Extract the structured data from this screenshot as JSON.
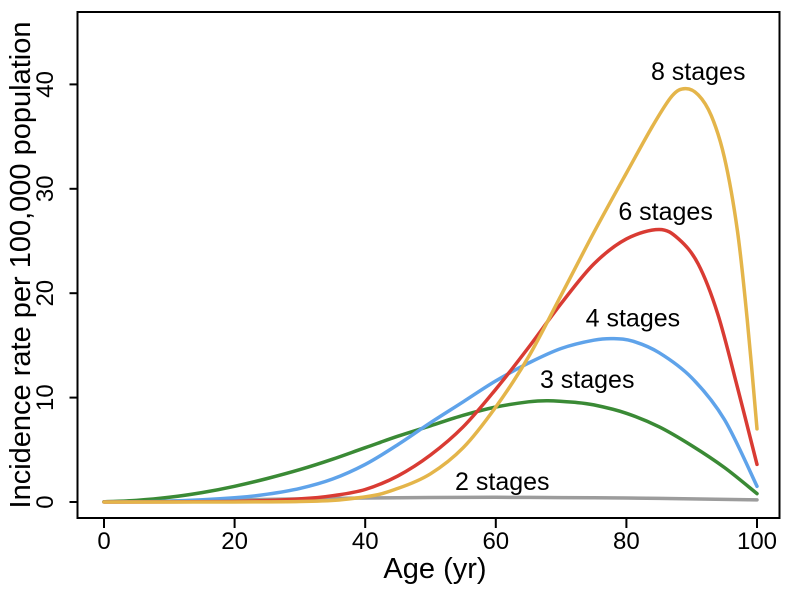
{
  "figure": {
    "background": "#ffffff",
    "border_color": "#000000"
  },
  "chart_data": {
    "type": "line",
    "title": "",
    "xlabel": "Age (yr)",
    "ylabel": "Incidence rate per 100,000 population",
    "xlim": [
      0,
      100
    ],
    "ylim": [
      0,
      40
    ],
    "x_ticks": [
      0,
      20,
      40,
      60,
      80,
      100
    ],
    "y_ticks": [
      0,
      10,
      20,
      30,
      40
    ],
    "grid": false,
    "legend_position": "inline-labels",
    "axis_color": "#000000",
    "series": [
      {
        "name": "2 stages",
        "color": "#9C9C9C",
        "label": {
          "text": "2 stages",
          "x": 61,
          "y": 1.9
        },
        "points": [
          [
            0,
            0.02
          ],
          [
            10,
            0.1
          ],
          [
            20,
            0.2
          ],
          [
            30,
            0.3
          ],
          [
            40,
            0.38
          ],
          [
            50,
            0.43
          ],
          [
            60,
            0.45
          ],
          [
            70,
            0.42
          ],
          [
            80,
            0.38
          ],
          [
            90,
            0.3
          ],
          [
            100,
            0.2
          ]
        ]
      },
      {
        "name": "3 stages",
        "color": "#3A8A35",
        "label": {
          "text": "3 stages",
          "x": 74,
          "y": 11.7
        },
        "points": [
          [
            0,
            0.02
          ],
          [
            5,
            0.15
          ],
          [
            10,
            0.45
          ],
          [
            15,
            0.9
          ],
          [
            20,
            1.5
          ],
          [
            25,
            2.25
          ],
          [
            30,
            3.1
          ],
          [
            35,
            4.1
          ],
          [
            40,
            5.2
          ],
          [
            45,
            6.3
          ],
          [
            50,
            7.3
          ],
          [
            55,
            8.3
          ],
          [
            60,
            9.1
          ],
          [
            65,
            9.6
          ],
          [
            68,
            9.7
          ],
          [
            72,
            9.55
          ],
          [
            75,
            9.3
          ],
          [
            80,
            8.5
          ],
          [
            85,
            7.2
          ],
          [
            90,
            5.4
          ],
          [
            95,
            3.3
          ],
          [
            100,
            0.8
          ]
        ]
      },
      {
        "name": "4 stages",
        "color": "#5FA3EA",
        "label": {
          "text": "4 stages",
          "x": 81,
          "y": 17.6
        },
        "points": [
          [
            0,
            0.01
          ],
          [
            10,
            0.08
          ],
          [
            20,
            0.4
          ],
          [
            25,
            0.75
          ],
          [
            30,
            1.3
          ],
          [
            35,
            2.2
          ],
          [
            40,
            3.6
          ],
          [
            45,
            5.5
          ],
          [
            50,
            7.6
          ],
          [
            55,
            9.6
          ],
          [
            60,
            11.6
          ],
          [
            65,
            13.3
          ],
          [
            70,
            14.7
          ],
          [
            75,
            15.5
          ],
          [
            78,
            15.65
          ],
          [
            81,
            15.4
          ],
          [
            85,
            14.3
          ],
          [
            90,
            11.9
          ],
          [
            95,
            7.9
          ],
          [
            100,
            1.5
          ]
        ]
      },
      {
        "name": "6 stages",
        "color": "#D93B33",
        "label": {
          "text": "6 stages",
          "x": 86,
          "y": 27.8
        },
        "points": [
          [
            0,
            0.0
          ],
          [
            20,
            0.05
          ],
          [
            30,
            0.3
          ],
          [
            35,
            0.6
          ],
          [
            40,
            1.2
          ],
          [
            45,
            2.5
          ],
          [
            50,
            4.5
          ],
          [
            55,
            7.2
          ],
          [
            60,
            10.8
          ],
          [
            65,
            14.8
          ],
          [
            70,
            19.0
          ],
          [
            75,
            22.8
          ],
          [
            80,
            25.2
          ],
          [
            85,
            26.1
          ],
          [
            88,
            25.2
          ],
          [
            91,
            22.8
          ],
          [
            94,
            18.0
          ],
          [
            97,
            11.0
          ],
          [
            100,
            3.6
          ]
        ]
      },
      {
        "name": "8 stages",
        "color": "#E4B54A",
        "label": {
          "text": "8 stages",
          "x": 91,
          "y": 41.2
        },
        "points": [
          [
            0,
            0.0
          ],
          [
            30,
            0.05
          ],
          [
            40,
            0.5
          ],
          [
            45,
            1.3
          ],
          [
            50,
            2.7
          ],
          [
            55,
            5.2
          ],
          [
            60,
            9.1
          ],
          [
            65,
            13.9
          ],
          [
            70,
            19.8
          ],
          [
            75,
            25.8
          ],
          [
            80,
            31.5
          ],
          [
            84,
            36.0
          ],
          [
            87,
            38.9
          ],
          [
            89,
            39.6
          ],
          [
            91,
            39.0
          ],
          [
            93,
            37.0
          ],
          [
            95,
            33.0
          ],
          [
            97,
            26.0
          ],
          [
            98.5,
            17.5
          ],
          [
            100,
            7.0
          ]
        ]
      }
    ]
  }
}
